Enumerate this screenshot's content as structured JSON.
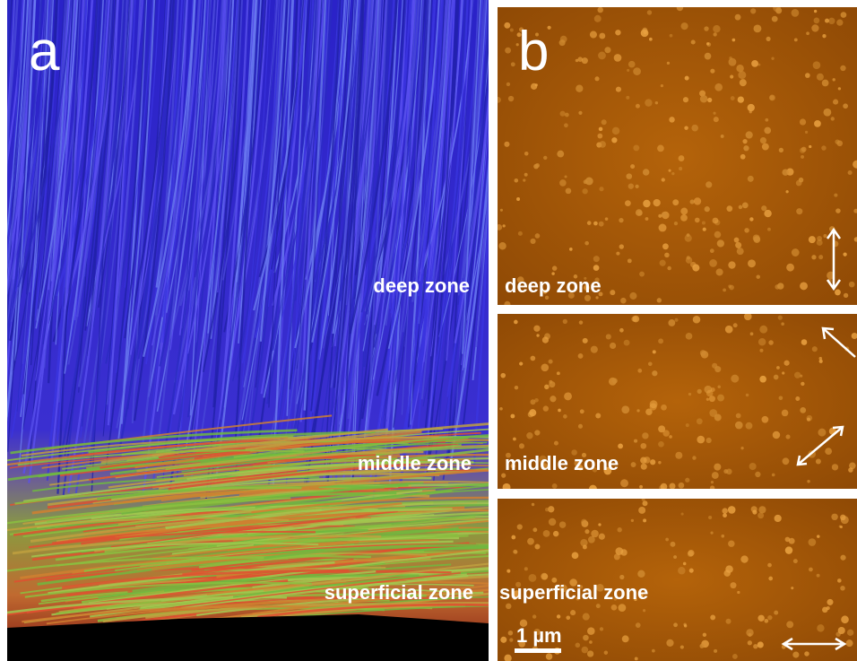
{
  "panels": {
    "a": {
      "label": "a",
      "zones": [
        "deep zone",
        "middle zone",
        "superficial zone"
      ]
    },
    "b": {
      "label": "b",
      "zones": [
        "deep zone",
        "middle zone",
        "superficial zone"
      ],
      "scale_bar": "1 µm"
    }
  }
}
